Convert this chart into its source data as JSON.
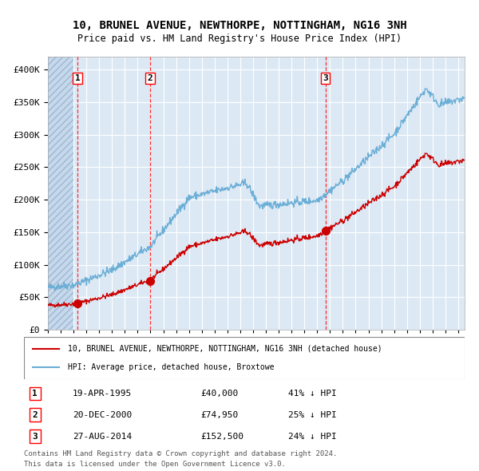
{
  "title": "10, BRUNEL AVENUE, NEWTHORPE, NOTTINGHAM, NG16 3NH",
  "subtitle": "Price paid vs. HM Land Registry's House Price Index (HPI)",
  "hpi_color": "#6baed6",
  "price_color": "#cc0000",
  "plot_bg": "#dce9f5",
  "sale_points": [
    {
      "date_num": 1995.3,
      "price": 40000,
      "label": "1"
    },
    {
      "date_num": 2000.97,
      "price": 74950,
      "label": "2"
    },
    {
      "date_num": 2014.65,
      "price": 152500,
      "label": "3"
    }
  ],
  "sale_labels": [
    {
      "label": "1",
      "date": "19-APR-1995",
      "price": "£40,000",
      "pct": "41% ↓ HPI"
    },
    {
      "label": "2",
      "date": "20-DEC-2000",
      "price": "£74,950",
      "pct": "25% ↓ HPI"
    },
    {
      "label": "3",
      "date": "27-AUG-2014",
      "price": "£152,500",
      "pct": "24% ↓ HPI"
    }
  ],
  "legend_line1": "10, BRUNEL AVENUE, NEWTHORPE, NOTTINGHAM, NG16 3NH (detached house)",
  "legend_line2": "HPI: Average price, detached house, Broxtowe",
  "footer1": "Contains HM Land Registry data © Crown copyright and database right 2024.",
  "footer2": "This data is licensed under the Open Government Licence v3.0.",
  "ylim": [
    0,
    420000
  ],
  "yticks": [
    0,
    50000,
    100000,
    150000,
    200000,
    250000,
    300000,
    350000,
    400000
  ],
  "xmin": 1993.0,
  "xmax": 2025.5
}
